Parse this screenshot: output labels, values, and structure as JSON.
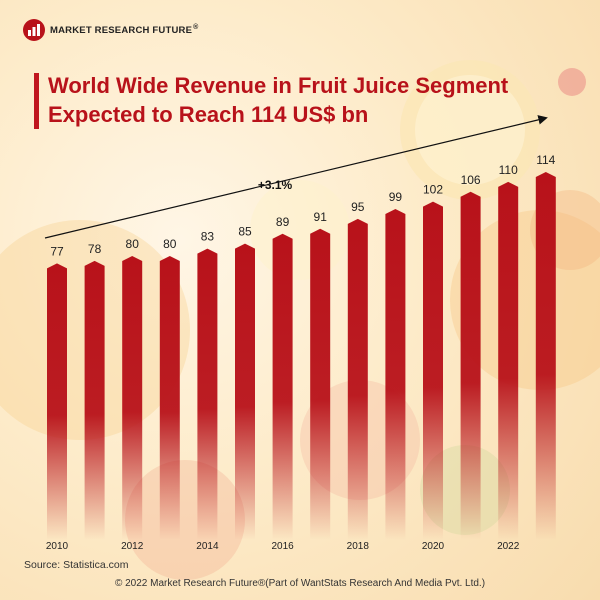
{
  "brand": {
    "name": "MARKET RESEARCH FUTURE",
    "mark": "®"
  },
  "title_line1": "World  Wide Revenue in Fruit Juice Segment",
  "title_line2": "Expected to Reach 114 US$ bn",
  "source": "Source: Statistica.com",
  "copyright": "© 2022 Market Research Future®(Part of WantStats Research And Media Pvt. Ltd.)",
  "colors": {
    "bar": "#b8121a",
    "title": "#b8121a",
    "text": "#222222"
  },
  "chart_data": {
    "type": "bar",
    "categories": [
      "2010",
      "2011",
      "2012",
      "2013",
      "2014",
      "2015",
      "2016",
      "2017",
      "2018",
      "2019",
      "2020",
      "2021",
      "2022",
      "2023"
    ],
    "x_tick_labels": [
      "2010",
      "",
      "2012",
      "",
      "2014",
      "",
      "2016",
      "",
      "2018",
      "",
      "2020",
      "",
      "2022",
      ""
    ],
    "values": [
      77,
      78,
      80,
      80,
      83,
      85,
      89,
      91,
      95,
      99,
      102,
      106,
      110,
      114
    ],
    "data_labels": [
      "77",
      "78",
      "80",
      "80",
      "83",
      "85",
      "89",
      "91",
      "95",
      "99",
      "102",
      "106",
      "110",
      "114"
    ],
    "annotation": "+3.1%",
    "title": "World  Wide Revenue in Fruit Juice Segment Expected to Reach 114 US$ bn",
    "xlabel": "",
    "ylabel": "",
    "grid": false,
    "legend": "none"
  }
}
